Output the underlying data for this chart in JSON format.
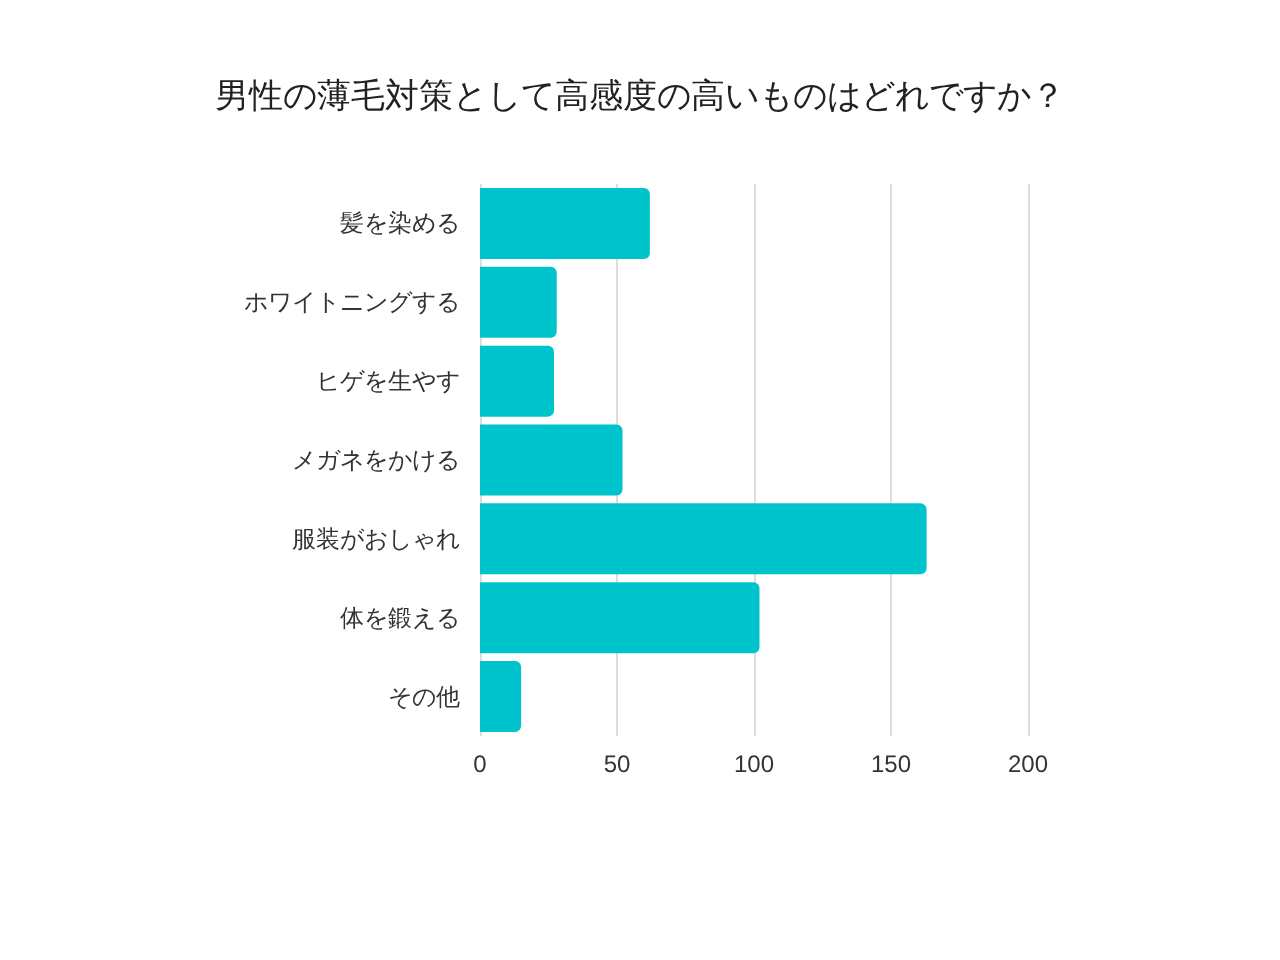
{
  "chart_data": {
    "type": "bar",
    "orientation": "horizontal",
    "title": "男性の薄毛対策として高感度の高いものはどれですか？",
    "categories": [
      "髪を染める",
      "ホワイトニングする",
      "ヒゲを生やす",
      "メガネをかける",
      "服装がおしゃれ",
      "体を鍛える",
      "その他"
    ],
    "values": [
      62,
      28,
      27,
      52,
      163,
      102,
      15
    ],
    "color": "#00c4cc",
    "xlim": [
      0,
      200
    ],
    "xticks": [
      0,
      50,
      100,
      150,
      200
    ],
    "grid": "x"
  }
}
